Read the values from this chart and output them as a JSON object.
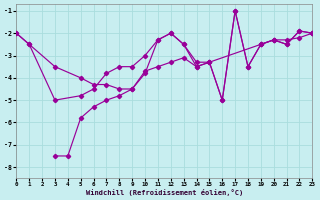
{
  "xlabel": "Windchill (Refroidissement éolien,°C)",
  "bg_color": "#c8eef0",
  "line_color": "#990099",
  "grid_color": "#aadddd",
  "xlim": [
    0,
    23
  ],
  "ylim": [
    -8.5,
    -0.7
  ],
  "yticks": [
    -8,
    -7,
    -6,
    -5,
    -4,
    -3,
    -2,
    -1
  ],
  "xticks": [
    0,
    1,
    2,
    3,
    4,
    5,
    6,
    7,
    8,
    9,
    10,
    11,
    12,
    13,
    14,
    15,
    16,
    17,
    18,
    19,
    20,
    21,
    22,
    23
  ],
  "lines": [
    {
      "x": [
        0,
        1,
        3,
        5,
        6,
        7,
        8,
        9,
        10,
        11,
        12,
        13,
        14,
        15,
        19,
        20,
        21,
        22,
        23
      ],
      "y": [
        -2.0,
        -2.5,
        -3.5,
        -4.0,
        -4.3,
        -4.3,
        -4.5,
        -4.5,
        -3.7,
        -3.5,
        -3.3,
        -3.1,
        -3.5,
        -3.3,
        -2.5,
        -2.3,
        -2.3,
        -2.2,
        -2.0
      ]
    },
    {
      "x": [
        0,
        1,
        3,
        5,
        6,
        7,
        8,
        9,
        10,
        11,
        12,
        13,
        14,
        15,
        16,
        17,
        18,
        19,
        20,
        21,
        22,
        23
      ],
      "y": [
        -2.0,
        -2.5,
        -5.0,
        -4.8,
        -4.5,
        -3.8,
        -3.5,
        -3.5,
        -3.0,
        -2.3,
        -2.0,
        -2.5,
        -3.3,
        -3.3,
        -5.0,
        -1.0,
        -3.5,
        -2.5,
        -2.3,
        -2.5,
        -1.9,
        -2.0
      ]
    },
    {
      "x": [
        3,
        4,
        5,
        6,
        7,
        8,
        9,
        10,
        11,
        12,
        13,
        14,
        15,
        16,
        17,
        18,
        19,
        20,
        21,
        22,
        23
      ],
      "y": [
        -7.5,
        -7.5,
        -5.8,
        -5.3,
        -5.0,
        -4.8,
        -4.5,
        -3.8,
        -2.3,
        -2.0,
        -2.5,
        -3.5,
        -3.3,
        -5.0,
        -1.0,
        -3.5,
        -2.5,
        -2.3,
        -2.5,
        -1.9,
        -2.0
      ]
    }
  ]
}
